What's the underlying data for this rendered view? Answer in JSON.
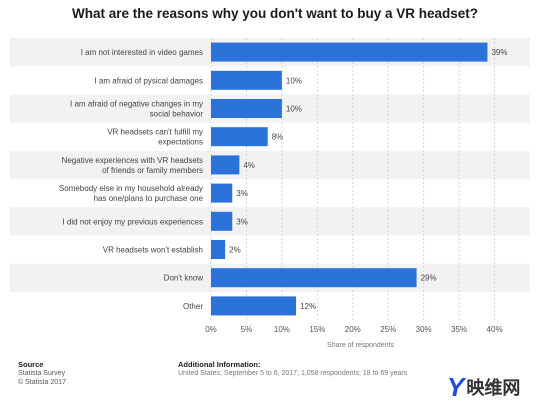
{
  "chart_data": {
    "type": "bar",
    "orientation": "horizontal",
    "title": "What are the reasons why you don't want to buy a VR headset?",
    "xlabel": "Share of respondents",
    "categories": [
      [
        "I am not interested in video games"
      ],
      [
        "I am afraid of pysical damages"
      ],
      [
        "I am afraid of negative changes in my",
        "social behavior"
      ],
      [
        "VR headsets can't fulfill my",
        "expectations"
      ],
      [
        "Negative experiences with VR headsets",
        "of friends or family members"
      ],
      [
        "Somebody else in my household already",
        "has one/plans to purchase one"
      ],
      [
        "I did not enjoy my previous experiences"
      ],
      [
        "VR headsets won't establish"
      ],
      [
        "Don't know"
      ],
      [
        "Other"
      ]
    ],
    "values": [
      39,
      10,
      10,
      8,
      4,
      3,
      3,
      2,
      29,
      12
    ],
    "value_labels": [
      "39%",
      "10%",
      "10%",
      "8%",
      "4%",
      "3%",
      "3%",
      "2%",
      "29%",
      "12%"
    ],
    "xlim": [
      0,
      45
    ],
    "xticks": [
      0,
      5,
      10,
      15,
      20,
      25,
      30,
      35,
      40
    ],
    "xtick_labels": [
      "0%",
      "5%",
      "10%",
      "15%",
      "20%",
      "25%",
      "30%",
      "35%",
      "40%"
    ],
    "grid": true,
    "bar_color": "#2b73d9"
  },
  "footer": {
    "source_heading": "Source",
    "source_lines": [
      "Statista Survey",
      "© Statista 2017"
    ],
    "info_heading": "Additional Information:",
    "info_text": "United States; September 5 to 6, 2017; 1,058 respondents; 18 to 69 years"
  },
  "watermark": {
    "mark": "Y",
    "text": "映维网"
  }
}
